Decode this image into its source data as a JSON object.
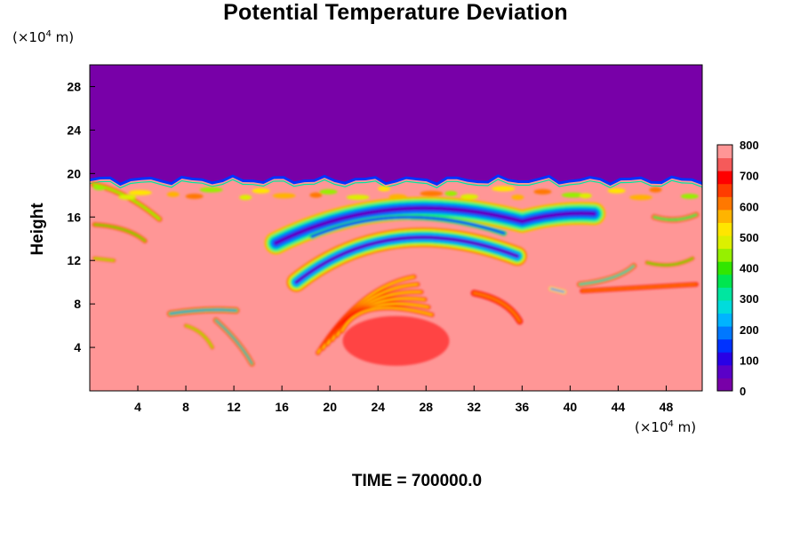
{
  "chart_data": {
    "type": "heatmap",
    "title": "Potential Temperature Deviation",
    "ylabel": "Height",
    "y_unit_prefix": "(×10",
    "y_unit_exp": "4",
    "y_unit_suffix": " m)",
    "x_unit_prefix": "(×10",
    "x_unit_exp": "4",
    "x_unit_suffix": " m)",
    "xlim": [
      0,
      51
    ],
    "ylim": [
      0,
      30
    ],
    "x_ticks": [
      4,
      8,
      12,
      16,
      20,
      24,
      28,
      32,
      36,
      40,
      44,
      48
    ],
    "y_ticks": [
      4,
      8,
      12,
      16,
      20,
      24,
      28
    ],
    "colorbar": {
      "range": [
        0,
        800
      ],
      "labels": [
        800,
        700,
        600,
        500,
        400,
        300,
        200,
        100,
        0
      ],
      "colors": [
        "#7800a8",
        "#5a00c8",
        "#2800e6",
        "#0032ff",
        "#0078ff",
        "#00b4ff",
        "#00dcdc",
        "#00e6a0",
        "#00e650",
        "#32e600",
        "#96f000",
        "#dcf000",
        "#ffe600",
        "#ffb400",
        "#ff7800",
        "#ff3c00",
        "#ff0000",
        "#f55a5a",
        "#ff9696"
      ]
    },
    "time_label": "TIME = 700000.0"
  }
}
